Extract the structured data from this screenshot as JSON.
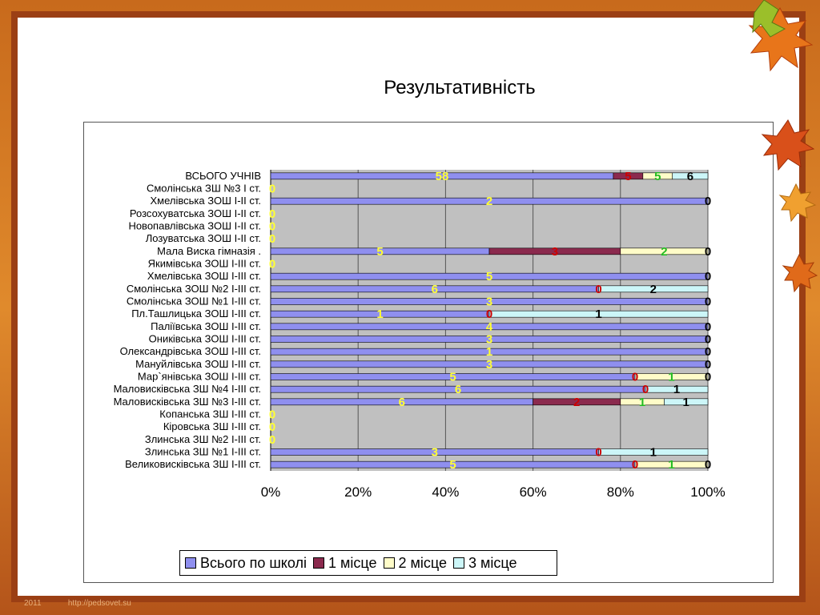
{
  "title": "Результативність",
  "colors": {
    "series": [
      "#8f8fef",
      "#8b2a4e",
      "#fffcc8",
      "#ccf6f8"
    ],
    "label_colors": [
      "#ffff33",
      "#cc0000",
      "#22bb22",
      "#000000"
    ],
    "plot_bg": "#c0c0c0",
    "grid": "#555555"
  },
  "chart_data": {
    "type": "bar",
    "orientation": "horizontal",
    "stacked": "percent",
    "title": "Результативність",
    "xlim": [
      0,
      100
    ],
    "x_ticks": [
      "0%",
      "20%",
      "40%",
      "60%",
      "80%",
      "100%"
    ],
    "grid": true,
    "legend_position": "bottom",
    "categories": [
      "ВСЬОГО УЧНІВ",
      "Смолінська ЗШ №3 І ст.",
      "Хмелівська ЗОШ І-ІІ ст.",
      "Розсохуватська ЗОШ І-ІІ ст.",
      "Новопавлівська ЗОШ І-ІІ ст.",
      "Лозуватська ЗОШ І-ІІ ст.",
      "Мала Виска гімназія .",
      "Якимівська ЗОШ І-ІІІ ст.",
      "Хмелівська ЗОШ І-ІІІ ст.",
      "Смолінська ЗОШ №2 І-ІІІ ст.",
      "Смолінська ЗОШ №1 І-ІІІ ст.",
      "Пл.Ташлицька ЗОШ І-ІІІ ст.",
      "Паліївська ЗОШ І-ІІІ ст.",
      "Ониківська ЗОШ І-ІІІ ст.",
      "Олександрівська ЗОШ І-ІІІ ст.",
      "Мануйлівська ЗОШ І-ІІІ ст.",
      "Мар`янівська ЗОШ І-ІІІ ст.",
      "Маловисківська ЗШ №4 І-ІІІ ст.",
      "Маловисківська ЗШ №3 І-ІІІ ст.",
      "Копанська ЗШ І-ІІІ ст.",
      "Кіровська ЗШ І-ІІІ ст.",
      "Злинська ЗШ №2 І-ІІІ ст.",
      "Злинська ЗШ №1 І-ІІІ ст.",
      "Великовисківська ЗШ І-ІІІ ст."
    ],
    "series": [
      {
        "name": "Всього по школі",
        "values": [
          58,
          0,
          2,
          0,
          0,
          0,
          5,
          0,
          5,
          6,
          3,
          1,
          4,
          3,
          1,
          3,
          5,
          6,
          6,
          0,
          0,
          0,
          3,
          5
        ]
      },
      {
        "name": "1 місце",
        "values": [
          5,
          0,
          0,
          0,
          0,
          0,
          3,
          0,
          0,
          0,
          0,
          0,
          0,
          0,
          0,
          0,
          0,
          0,
          2,
          0,
          0,
          0,
          0,
          0
        ]
      },
      {
        "name": "2 місце",
        "values": [
          5,
          0,
          0,
          0,
          0,
          0,
          2,
          0,
          0,
          0,
          0,
          0,
          0,
          0,
          0,
          0,
          1,
          0,
          1,
          0,
          0,
          0,
          0,
          1
        ]
      },
      {
        "name": "3 місце",
        "values": [
          6,
          0,
          0,
          0,
          0,
          0,
          0,
          0,
          0,
          2,
          0,
          1,
          0,
          0,
          0,
          0,
          0,
          1,
          1,
          0,
          0,
          0,
          1,
          0
        ]
      }
    ],
    "data_labels": [
      [
        "58",
        "5",
        "5",
        "6"
      ],
      [
        "0",
        "",
        "",
        ""
      ],
      [
        "2",
        "",
        "",
        "0"
      ],
      [
        "0",
        "",
        "",
        ""
      ],
      [
        "0",
        "",
        "",
        ""
      ],
      [
        "0",
        "",
        "",
        ""
      ],
      [
        "5",
        "3",
        "2",
        "0"
      ],
      [
        "0",
        "",
        "",
        ""
      ],
      [
        "5",
        "",
        "",
        "0"
      ],
      [
        "6",
        "0",
        "",
        "2"
      ],
      [
        "3",
        "",
        "",
        "0"
      ],
      [
        "1",
        "0",
        "",
        "1"
      ],
      [
        "4",
        "",
        "",
        "0"
      ],
      [
        "3",
        "",
        "",
        "0"
      ],
      [
        "1",
        "",
        "",
        "0"
      ],
      [
        "3",
        "",
        "",
        "0"
      ],
      [
        "5",
        "0",
        "1",
        "0"
      ],
      [
        "6",
        "0",
        "",
        "1"
      ],
      [
        "6",
        "2",
        "1",
        "1"
      ],
      [
        "0",
        "",
        "",
        ""
      ],
      [
        "0",
        "",
        "",
        ""
      ],
      [
        "0",
        "",
        "",
        ""
      ],
      [
        "3",
        "0",
        "",
        "1"
      ],
      [
        "5",
        "0",
        "1",
        "0"
      ]
    ]
  },
  "footer": {
    "year": "2011",
    "url": "http://pedsovet.su"
  }
}
